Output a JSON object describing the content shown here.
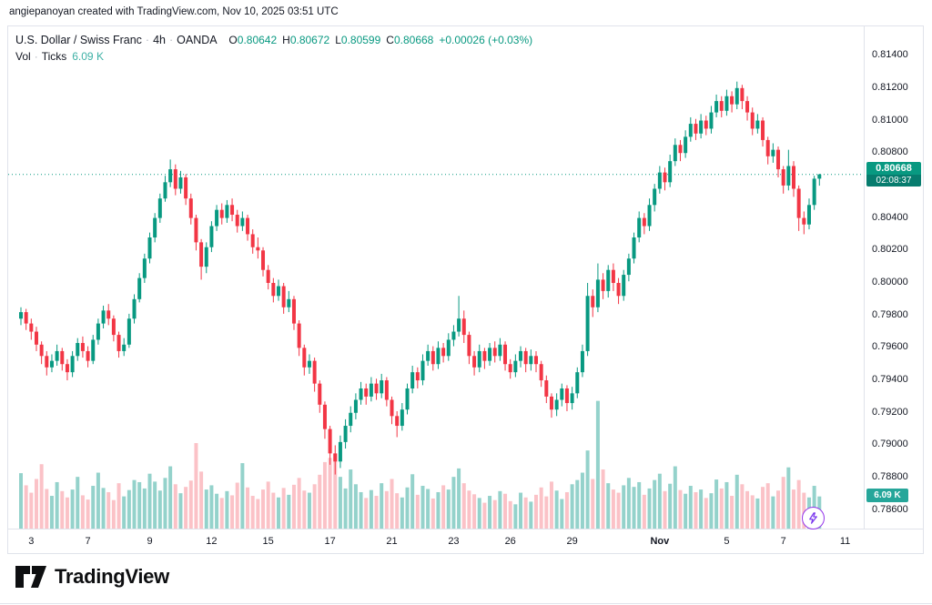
{
  "attribution": "angiepanoyan created with TradingView.com, Nov 10, 2025 03:51 UTC",
  "legend": {
    "symbol_title": "U.S. Dollar / Swiss Franc",
    "separator": "·",
    "interval": "4h",
    "exchange": "OANDA",
    "o_label": "O",
    "o": "0.80642",
    "h_label": "H",
    "h": "0.80672",
    "l_label": "L",
    "l": "0.80599",
    "c_label": "C",
    "c": "0.80668",
    "change": "+0.00026 (+0.03%)",
    "vol_label": "Vol",
    "vol_type": "Ticks",
    "vol_value": "6.09 K"
  },
  "price_axis": {
    "current_price": "0.80668",
    "countdown": "02:08:37",
    "volume_badge": "6.09 K"
  },
  "footer": {
    "logo_text": "TradingView"
  },
  "fab": {
    "icon": "lightning-icon"
  },
  "colors": {
    "up": "#089981",
    "down": "#f23645",
    "vol_up": "rgba(42,166,152,0.5)",
    "vol_down": "rgba(242,54,69,0.3)",
    "badge_price_bg": "#089981",
    "badge_countdown_bg": "#077c6e",
    "badge_volume_bg": "#26a69a",
    "axis_text": "#131722"
  },
  "chart_data": {
    "type": "candlestick",
    "symbol": "USD/CHF",
    "title": "U.S. Dollar / Swiss Franc · 4h · OANDA",
    "interval": "4h",
    "price_unit": 0.0001,
    "price_line": 0.80668,
    "y_axis": {
      "min": 0.78487,
      "max": 0.8158
    },
    "vol_axis": {
      "max": 25,
      "unit": "K"
    },
    "price_ticks": [
      0.814,
      0.812,
      0.81,
      0.808,
      0.806,
      0.804,
      0.802,
      0.8,
      0.798,
      0.796,
      0.794,
      0.792,
      0.79,
      0.788,
      0.786
    ],
    "x_ticks": [
      {
        "text": "3",
        "i": 2
      },
      {
        "text": "7",
        "i": 13
      },
      {
        "text": "9",
        "i": 25
      },
      {
        "text": "12",
        "i": 37
      },
      {
        "text": "15",
        "i": 48
      },
      {
        "text": "17",
        "i": 60
      },
      {
        "text": "21",
        "i": 72
      },
      {
        "text": "23",
        "i": 84
      },
      {
        "text": "26",
        "i": 95
      },
      {
        "text": "29",
        "i": 107
      },
      {
        "text": "Nov",
        "i": 124,
        "bold": true
      },
      {
        "text": "5",
        "i": 137
      },
      {
        "text": "7",
        "i": 148
      },
      {
        "text": "11",
        "i": 160
      }
    ],
    "candles": [
      [
        7978,
        7985,
        7974,
        7982
      ],
      [
        7982,
        7984,
        7971,
        7975
      ],
      [
        7975,
        7978,
        7965,
        7970
      ],
      [
        7970,
        7973,
        7958,
        7962
      ],
      [
        7962,
        7964,
        7950,
        7955
      ],
      [
        7955,
        7958,
        7943,
        7948
      ],
      [
        7948,
        7956,
        7945,
        7952
      ],
      [
        7952,
        7962,
        7949,
        7958
      ],
      [
        7958,
        7960,
        7946,
        7950
      ],
      [
        7950,
        7953,
        7940,
        7945
      ],
      [
        7945,
        7958,
        7942,
        7955
      ],
      [
        7955,
        7966,
        7952,
        7963
      ],
      [
        7963,
        7967,
        7954,
        7958
      ],
      [
        7958,
        7961,
        7948,
        7952
      ],
      [
        7952,
        7968,
        7950,
        7965
      ],
      [
        7965,
        7978,
        7962,
        7975
      ],
      [
        7975,
        7986,
        7972,
        7983
      ],
      [
        7983,
        7987,
        7974,
        7978
      ],
      [
        7978,
        7980,
        7964,
        7968
      ],
      [
        7968,
        7970,
        7954,
        7958
      ],
      [
        7958,
        7966,
        7955,
        7962
      ],
      [
        7962,
        7981,
        7960,
        7978
      ],
      [
        7978,
        7993,
        7975,
        7990
      ],
      [
        7990,
        8006,
        7988,
        8003
      ],
      [
        8003,
        8018,
        8000,
        8015
      ],
      [
        8015,
        8031,
        8012,
        8028
      ],
      [
        8028,
        8043,
        8025,
        8040
      ],
      [
        8040,
        8055,
        8037,
        8052
      ],
      [
        8052,
        8066,
        8050,
        8062
      ],
      [
        8062,
        8076,
        8059,
        8070
      ],
      [
        8070,
        8073,
        8054,
        8058
      ],
      [
        8058,
        8069,
        8055,
        8065
      ],
      [
        8065,
        8067,
        8048,
        8052
      ],
      [
        8052,
        8055,
        8036,
        8040
      ],
      [
        8040,
        8042,
        8020,
        8025
      ],
      [
        8025,
        8027,
        8002,
        8010
      ],
      [
        8010,
        8025,
        8006,
        8022
      ],
      [
        8022,
        8038,
        8019,
        8035
      ],
      [
        8035,
        8048,
        8032,
        8045
      ],
      [
        8045,
        8049,
        8036,
        8040
      ],
      [
        8040,
        8051,
        8037,
        8048
      ],
      [
        8048,
        8052,
        8038,
        8042
      ],
      [
        8042,
        8045,
        8031,
        8035
      ],
      [
        8035,
        8044,
        8032,
        8040
      ],
      [
        8040,
        8042,
        8026,
        8030
      ],
      [
        8030,
        8033,
        8018,
        8022
      ],
      [
        8022,
        8028,
        8015,
        8020
      ],
      [
        8020,
        8022,
        8004,
        8008
      ],
      [
        8008,
        8011,
        7996,
        8000
      ],
      [
        8000,
        8003,
        7988,
        7992
      ],
      [
        7992,
        8002,
        7989,
        7998
      ],
      [
        7998,
        8000,
        7981,
        7985
      ],
      [
        7985,
        7995,
        7982,
        7990
      ],
      [
        7990,
        7992,
        7971,
        7975
      ],
      [
        7975,
        7977,
        7955,
        7960
      ],
      [
        7960,
        7962,
        7943,
        7948
      ],
      [
        7948,
        7956,
        7944,
        7952
      ],
      [
        7952,
        7954,
        7933,
        7938
      ],
      [
        7938,
        7940,
        7920,
        7925
      ],
      [
        7925,
        7927,
        7904,
        7910
      ],
      [
        7910,
        7912,
        7888,
        7895
      ],
      [
        7895,
        7900,
        7882,
        7890
      ],
      [
        7890,
        7906,
        7886,
        7902
      ],
      [
        7902,
        7916,
        7898,
        7912
      ],
      [
        7912,
        7924,
        7908,
        7920
      ],
      [
        7920,
        7932,
        7916,
        7928
      ],
      [
        7928,
        7939,
        7925,
        7935
      ],
      [
        7935,
        7938,
        7925,
        7930
      ],
      [
        7930,
        7942,
        7927,
        7938
      ],
      [
        7938,
        7941,
        7928,
        7932
      ],
      [
        7932,
        7944,
        7929,
        7940
      ],
      [
        7940,
        7942,
        7924,
        7928
      ],
      [
        7928,
        7930,
        7913,
        7918
      ],
      [
        7918,
        7921,
        7905,
        7912
      ],
      [
        7912,
        7926,
        7909,
        7922
      ],
      [
        7922,
        7938,
        7919,
        7935
      ],
      [
        7935,
        7949,
        7932,
        7945
      ],
      [
        7945,
        7948,
        7935,
        7940
      ],
      [
        7940,
        7956,
        7937,
        7952
      ],
      [
        7952,
        7962,
        7949,
        7958
      ],
      [
        7958,
        7961,
        7946,
        7950
      ],
      [
        7950,
        7964,
        7947,
        7960
      ],
      [
        7960,
        7963,
        7951,
        7955
      ],
      [
        7955,
        7969,
        7952,
        7965
      ],
      [
        7965,
        7974,
        7961,
        7970
      ],
      [
        7970,
        7992,
        7967,
        7978
      ],
      [
        7978,
        7983,
        7963,
        7968
      ],
      [
        7968,
        7970,
        7950,
        7955
      ],
      [
        7955,
        7958,
        7943,
        7948
      ],
      [
        7948,
        7962,
        7945,
        7958
      ],
      [
        7958,
        7960,
        7947,
        7952
      ],
      [
        7952,
        7963,
        7949,
        7960
      ],
      [
        7960,
        7964,
        7951,
        7955
      ],
      [
        7955,
        7966,
        7952,
        7962
      ],
      [
        7962,
        7964,
        7946,
        7950
      ],
      [
        7950,
        7953,
        7941,
        7945
      ],
      [
        7945,
        7956,
        7942,
        7952
      ],
      [
        7952,
        7961,
        7948,
        7958
      ],
      [
        7958,
        7960,
        7945,
        7950
      ],
      [
        7950,
        7959,
        7946,
        7955
      ],
      [
        7955,
        7958,
        7945,
        7950
      ],
      [
        7950,
        7952,
        7936,
        7940
      ],
      [
        7940,
        7943,
        7926,
        7930
      ],
      [
        7930,
        7932,
        7917,
        7922
      ],
      [
        7922,
        7932,
        7918,
        7928
      ],
      [
        7928,
        7938,
        7924,
        7935
      ],
      [
        7935,
        7937,
        7921,
        7926
      ],
      [
        7926,
        7936,
        7922,
        7932
      ],
      [
        7932,
        7948,
        7929,
        7945
      ],
      [
        7945,
        7962,
        7942,
        7958
      ],
      [
        7958,
        8000,
        7955,
        7992
      ],
      [
        7992,
        7996,
        7979,
        7985
      ],
      [
        7985,
        8012,
        7982,
        8002
      ],
      [
        8002,
        8006,
        7990,
        7995
      ],
      [
        7995,
        8011,
        7991,
        8008
      ],
      [
        8008,
        8012,
        7995,
        8000
      ],
      [
        8000,
        8003,
        7987,
        7992
      ],
      [
        7992,
        8008,
        7989,
        8005
      ],
      [
        8005,
        8018,
        8001,
        8015
      ],
      [
        8015,
        8031,
        8012,
        8028
      ],
      [
        8028,
        8044,
        8025,
        8040
      ],
      [
        8040,
        8043,
        8030,
        8035
      ],
      [
        8035,
        8052,
        8032,
        8048
      ],
      [
        8048,
        8061,
        8044,
        8058
      ],
      [
        8058,
        8072,
        8055,
        8068
      ],
      [
        8068,
        8071,
        8057,
        8062
      ],
      [
        8062,
        8079,
        8059,
        8075
      ],
      [
        8075,
        8089,
        8072,
        8085
      ],
      [
        8085,
        8088,
        8075,
        8080
      ],
      [
        8080,
        8094,
        8077,
        8090
      ],
      [
        8090,
        8102,
        8087,
        8098
      ],
      [
        8098,
        8101,
        8088,
        8092
      ],
      [
        8092,
        8104,
        8089,
        8100
      ],
      [
        8100,
        8103,
        8091,
        8095
      ],
      [
        8095,
        8109,
        8092,
        8105
      ],
      [
        8105,
        8116,
        8102,
        8112
      ],
      [
        8112,
        8115,
        8102,
        8106
      ],
      [
        8106,
        8119,
        8103,
        8115
      ],
      [
        8115,
        8118,
        8105,
        8110
      ],
      [
        8110,
        8124,
        8107,
        8120
      ],
      [
        8120,
        8122,
        8107,
        8112
      ],
      [
        8112,
        8115,
        8100,
        8105
      ],
      [
        8105,
        8108,
        8091,
        8095
      ],
      [
        8095,
        8104,
        8092,
        8100
      ],
      [
        8100,
        8102,
        8084,
        8088
      ],
      [
        8088,
        8090,
        8073,
        8078
      ],
      [
        8078,
        8086,
        8074,
        8082
      ],
      [
        8082,
        8084,
        8065,
        8070
      ],
      [
        8070,
        8072,
        8055,
        8060
      ],
      [
        8060,
        8082,
        8057,
        8072
      ],
      [
        8072,
        8075,
        8053,
        8058
      ],
      [
        8058,
        8060,
        8032,
        8040
      ],
      [
        8040,
        8044,
        8030,
        8036
      ],
      [
        8036,
        8052,
        8033,
        8048
      ],
      [
        8048,
        8066,
        8045,
        8064.2
      ],
      [
        8064.2,
        8067.2,
        8059.9,
        8066.8
      ]
    ],
    "volumes": [
      10.5,
      8.2,
      6.8,
      9.4,
      12.2,
      7.5,
      6.2,
      8.8,
      7.1,
      5.9,
      7.4,
      9.8,
      6.3,
      5.5,
      8.1,
      10.6,
      7.7,
      6.9,
      5.4,
      8.6,
      6.1,
      7.3,
      9.2,
      8.8,
      7.6,
      10.4,
      8.9,
      7.2,
      9.6,
      11.8,
      8.4,
      6.7,
      7.9,
      9.1,
      16.2,
      10.8,
      7.4,
      8.2,
      6.6,
      5.8,
      7.1,
      6.3,
      8.7,
      12.4,
      7.8,
      6.2,
      5.6,
      7.4,
      8.9,
      6.8,
      5.9,
      7.7,
      6.4,
      8.3,
      9.6,
      7.2,
      6.8,
      8.4,
      10.2,
      12.6,
      13.4,
      14.2,
      9.8,
      7.6,
      11.2,
      8.4,
      6.9,
      5.8,
      7.3,
      6.2,
      8.6,
      7.1,
      9.4,
      6.7,
      5.9,
      7.8,
      10.3,
      6.4,
      8.1,
      7.5,
      5.7,
      6.9,
      8.2,
      7.4,
      9.8,
      11.4,
      8.6,
      7.2,
      6.5,
      5.8,
      4.9,
      6.2,
      5.4,
      7.1,
      6.6,
      5.2,
      4.6,
      6.8,
      5.9,
      5.1,
      6.4,
      7.8,
      6.1,
      8.9,
      7.2,
      5.6,
      6.9,
      8.4,
      9.2,
      10.6,
      14.8,
      9.4,
      24.2,
      11.2,
      8.6,
      7.4,
      6.8,
      8.2,
      9.6,
      7.9,
      8.8,
      6.4,
      7.6,
      9.2,
      10.4,
      7.1,
      8.5,
      11.8,
      7.3,
      6.6,
      8.1,
      6.9,
      7.4,
      5.8,
      6.7,
      9.3,
      7.6,
      8.8,
      6.2,
      10.2,
      8.4,
      7.1,
      6.3,
      5.7,
      7.9,
      8.6,
      6.1,
      7.2,
      9.8,
      11.6,
      7.4,
      9.2,
      6.8,
      5.9,
      8.1,
      6.09
    ]
  }
}
